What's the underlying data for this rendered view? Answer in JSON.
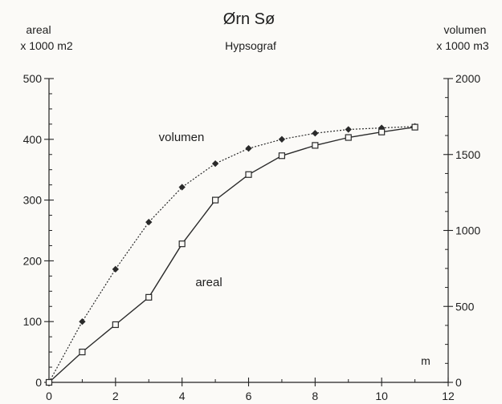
{
  "chart_data": {
    "type": "line",
    "title": "Ørn Sø",
    "subtitle": "Hypsograf",
    "x_unit": "m",
    "y_left": {
      "label_line1": "areal",
      "label_line2": "x 1000 m2",
      "range": [
        0,
        500
      ],
      "ticks": [
        0,
        100,
        200,
        300,
        400,
        500
      ]
    },
    "y_right": {
      "label_line1": "volumen",
      "label_line2": "x 1000 m3",
      "range": [
        0,
        2000
      ],
      "ticks": [
        0,
        500,
        1000,
        1500,
        2000
      ]
    },
    "x_axis": {
      "range": [
        0,
        12
      ],
      "ticks": [
        0,
        2,
        4,
        6,
        8,
        10,
        12
      ]
    },
    "grid": false,
    "series": [
      {
        "name": "volumen",
        "axis": "right",
        "marker": "diamond",
        "line_style": "dotted",
        "x": [
          0,
          1,
          2,
          3,
          4,
          5,
          6,
          7,
          8,
          9,
          10,
          11
        ],
        "values": [
          0,
          400,
          745,
          1055,
          1285,
          1440,
          1540,
          1600,
          1640,
          1665,
          1675,
          1685
        ]
      },
      {
        "name": "areal",
        "axis": "left",
        "marker": "square",
        "line_style": "solid",
        "x": [
          0,
          1,
          2,
          3,
          4,
          5,
          6,
          7,
          8,
          9,
          10,
          11
        ],
        "values": [
          0,
          50,
          95,
          140,
          228,
          300,
          342,
          373,
          390,
          403,
          412,
          420
        ]
      }
    ]
  }
}
